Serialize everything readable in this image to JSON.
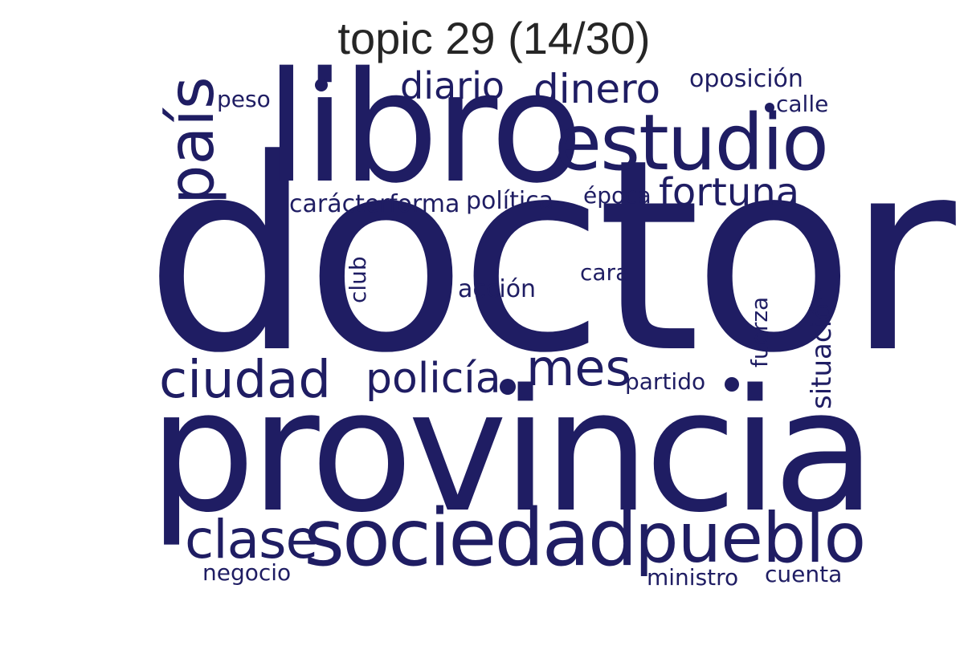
{
  "title": "topic 29 (14/30)",
  "color": "#1f1d63",
  "words": {
    "doctor": "doctor",
    "provincia": "provincia",
    "libro": "libro",
    "estudio": "estudio",
    "pais": "país",
    "sociedad": "sociedad",
    "pueblo": "pueblo",
    "ciudad": "ciudad",
    "clase": "clase",
    "mes": "mes",
    "policia": "policía",
    "fortuna": "fortuna",
    "dinero": "dinero",
    "diario": "diario",
    "oposicion": "oposición",
    "calle": "calle",
    "peso": "peso",
    "caracter": "carácter",
    "forma": "forma",
    "politica": "política",
    "epoca": "época",
    "club": "club",
    "accion": "acción",
    "cara": "cara",
    "fuerza": "fuerza",
    "situacion": "situación",
    "partido": "partido",
    "negocio": "negocio",
    "ministro": "ministro",
    "cuenta": "cuenta"
  }
}
